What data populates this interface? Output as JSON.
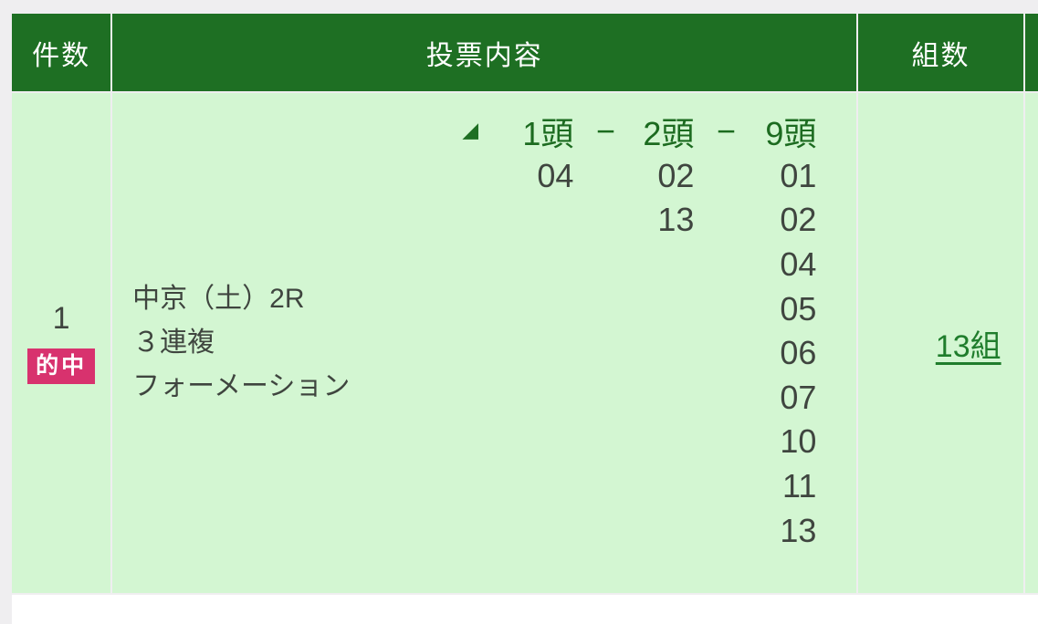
{
  "table": {
    "header": {
      "kensu": "件数",
      "naiyou": "投票内容",
      "kumisu": "組数"
    },
    "row": {
      "count": "1",
      "hit_badge": "的中",
      "venue_lines": [
        "中京（土）2R",
        "３連複",
        "フォーメーション"
      ],
      "formation": {
        "triangle_icon": "◢",
        "col1_label": "1頭",
        "col2_label": "2頭",
        "col3_label": "9頭",
        "separator": "−",
        "rows": [
          [
            "04",
            "02",
            "01"
          ],
          [
            "",
            "13",
            "02"
          ],
          [
            "",
            "",
            "04"
          ],
          [
            "",
            "",
            "05"
          ],
          [
            "",
            "",
            "06"
          ],
          [
            "",
            "",
            "07"
          ],
          [
            "",
            "",
            "10"
          ],
          [
            "",
            "",
            "11"
          ],
          [
            "",
            "",
            "13"
          ]
        ]
      },
      "kumisu_link": "13組"
    }
  },
  "colors": {
    "header_green": "#1e6f23",
    "cell_green": "#d3f6d2",
    "badge_pink": "#d8326e",
    "link_green": "#1f7d2c",
    "text_dark": "#3f453f",
    "page_gray": "#efeef0"
  }
}
